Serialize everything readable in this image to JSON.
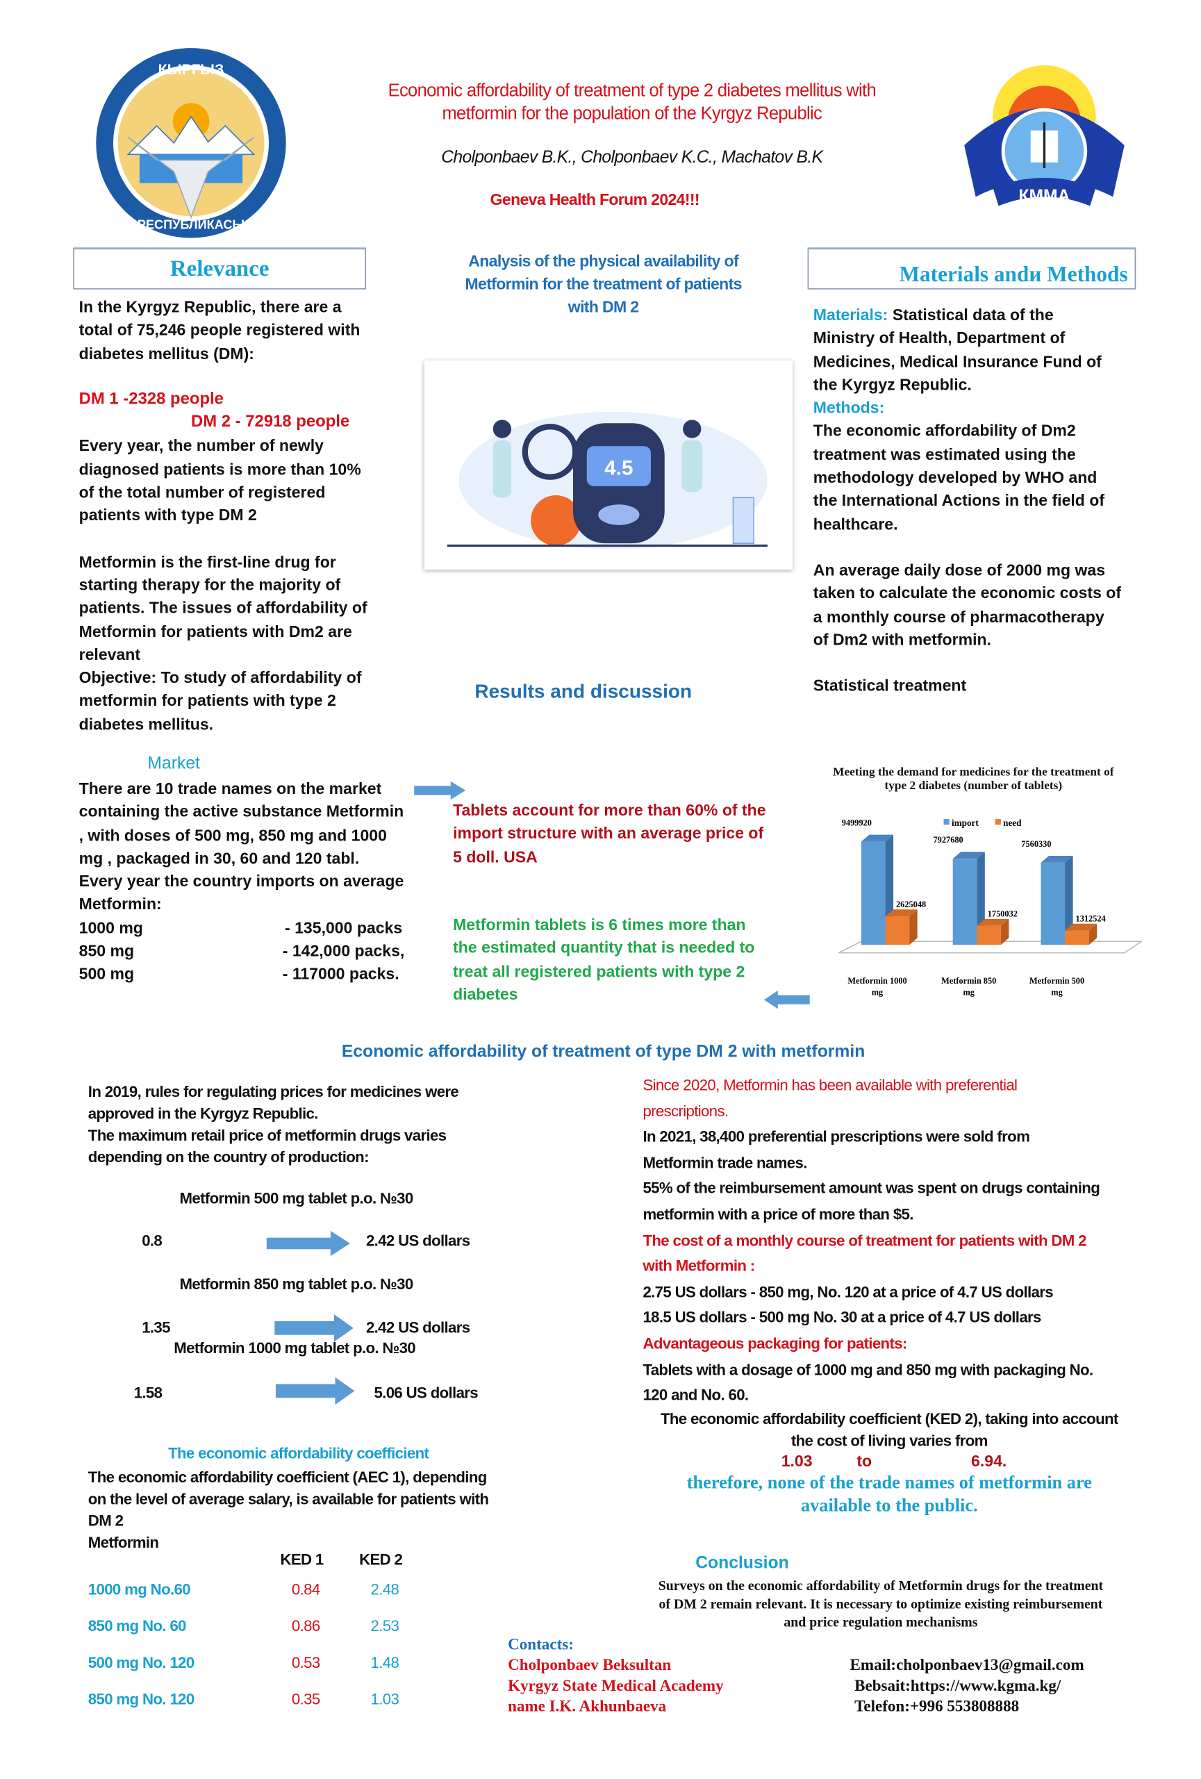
{
  "header": {
    "title_line1": "Economic affordability of treatment of type 2 diabetes mellitus with",
    "title_line2": "metformin for the population of the Kyrgyz Republic",
    "authors": "Cholponbaev B.K., Cholponbaev K.C., Machatov B.K",
    "event": "Geneva Health Forum 2024!!!",
    "left_logo_text_top": "КЫРГЫЗ",
    "left_logo_text_bottom": "РЕСПУБЛИКАСЫ",
    "right_logo_text": "КММА"
  },
  "relevance": {
    "heading": "Relevance",
    "lines": [
      "In the Kyrgyz Republic, there are a",
      "total of 75,246 people registered with",
      "diabetes mellitus  (DM):"
    ],
    "dm1": "DM  1 -2328 people",
    "dm2": "DM 2 -   72918 people",
    "lines2": [
      "  Every year, the number of newly",
      "diagnosed patients is more than 10%",
      "of the total number of registered",
      "patients with type DM 2"
    ],
    "lines3": [
      "Metformin is the first-line drug for",
      "starting therapy for the majority of",
      "patients. The issues of affordability of",
      "Metformin for patients with Dm2 are",
      "relevant",
      "Objective: To study of affordability of",
      "metformin for patients with type 2",
      "diabetes mellitus."
    ]
  },
  "analysis": {
    "heading_lines": [
      "Analysis of the physical availability of",
      "Metformin for the treatment of patients",
      "with DM 2"
    ],
    "glucometer_reading": "4.5"
  },
  "methods": {
    "heading": "Materials andи Methods",
    "materials_label": "Materials:",
    "materials_lines": [
      " Statistical data of the",
      "Ministry of Health, Department of",
      "Medicines,  Medical Insurance Fund of",
      "the Kyrgyz Republic."
    ],
    "methods_label": "Methods:",
    "methods_lines": [
      "The economic affordability of Dm2",
      "treatment was estimated using the",
      "methodology developed by WHO and",
      "the International Actions in the field of",
      "healthcare."
    ],
    "dose_lines": [
      "An average daily dose of 2000 mg was",
      "taken to calculate the economic costs of",
      "a monthly course of pharmacotherapy",
      "of Dm2 with metformin."
    ],
    "stat": "Statistical treatment"
  },
  "results": {
    "heading": "Results and discussion"
  },
  "market": {
    "heading": "Market",
    "lines": [
      "There are 10 trade names on the market",
      "containing the active substance Metformin",
      ", with doses of 500 mg, 850 mg and 1000",
      "mg , packaged in 30, 60 and 120 tabl.",
      "Every year the country imports on average",
      "Metformin:"
    ],
    "imports": [
      {
        "dose": "1000 mg",
        "packs": "- 135,000 packs"
      },
      {
        "dose": "850 mg",
        "packs": "-  142,000 packs,"
      },
      {
        "dose": "500 mg",
        "packs": "-   117000 packs."
      }
    ],
    "red_lines": [
      "Tablets account for more than 60% of the",
      "import structure with an average price of",
      "5 doll. USA"
    ],
    "green_lines": [
      "Metformin tablets is 6 times more than",
      "the estimated quantity that is needed to",
      "treat all registered patients with type 2",
      "diabetes"
    ]
  },
  "chart_data": {
    "type": "bar",
    "title": "Meeting the demand for medicines for the treatment of type 2 diabetes (number of tablets)",
    "categories": [
      "Metformin 1000 mg",
      "Metformin 850 mg",
      "Metformin 500 mg"
    ],
    "series": [
      {
        "name": "import",
        "values": [
          9499920,
          7927680,
          7560330
        ],
        "color": "#5b9bd5"
      },
      {
        "name": "need",
        "values": [
          2625048,
          1750032,
          1312524
        ],
        "color": "#ed7d31"
      }
    ],
    "data_labels": [
      "9499920",
      "7927680",
      "7560330",
      "2625048",
      "1750032",
      "1312524"
    ],
    "legend": "top",
    "grid": false,
    "style": "3d-column"
  },
  "affordability": {
    "heading": "Economic affordability of treatment of type DM 2 with metformin",
    "left_lines": [
      "In 2019, rules for regulating prices for medicines were",
      "approved in the Kyrgyz Republic.",
      "The maximum retail price of metformin drugs varies",
      "depending on the country of production:"
    ],
    "prices": [
      {
        "name": "Metformin 500 mg tablet p.o. №30",
        "from": "0.8",
        "to": "2.42 US dollars"
      },
      {
        "name": "Metformin 850 mg tablet p.o. №30",
        "from": "1.35",
        "to": "2.42 US dollars"
      },
      {
        "name": "Metformin 1000 mg tablet p.o. №30",
        "from": "1.58",
        "to": "5.06 US dollars"
      }
    ],
    "coef_heading": "The economic affordability coefficient",
    "coef_lines": [
      "The economic affordability coefficient (AEC 1), depending",
      "on the level of average salary, is available for patients with",
      "DM 2",
      "Metformin"
    ],
    "table_headers": [
      "KED 1",
      "KED 2"
    ],
    "table_rows": [
      {
        "name": "1000 mg No.60",
        "ked1": "0.84",
        "ked2": "2.48"
      },
      {
        "name": "850 mg No. 60",
        "ked1": "0.86",
        "ked2": "2.53"
      },
      {
        "name": "500 mg No. 120",
        "ked1": "0.53",
        "ked2": "1.48"
      },
      {
        "name": "850 mg No. 120",
        "ked1": "0.35",
        "ked2": "1.03"
      }
    ],
    "right": {
      "red1": [
        "Since 2020, Metformin has been available with preferential",
        "prescriptions."
      ],
      "black1": [
        " In 2021, 38,400 preferential prescriptions were sold from",
        "Metformin trade names.",
        "55% of the reimbursement amount was spent on drugs containing",
        "metformin with a price of more than $5."
      ],
      "red2": [
        "The cost of a monthly course of treatment for patients with DM 2",
        "with Metformin :"
      ],
      "black2": [
        "2.75 US dollars - 850 mg, No. 120 at a price of 4.7 US dollars",
        "18.5 US dollars - 500 mg No. 30 at a price of 4.7 US dollars"
      ],
      "red3": "Advantageous packaging for patients:",
      "black3": [
        "Tablets with a dosage of 1000 mg and 850 mg with packaging No.",
        "120 and No. 60."
      ],
      "ked2_line1": "The economic affordability coefficient (KED 2), taking into account",
      "ked2_line2": "the cost of living varies from",
      "range_from": "1.03",
      "range_to_word": "to",
      "range_to": "6.94.",
      "conclusion_lines": [
        "therefore, none of the trade names of metformin are",
        "available to the public."
      ]
    }
  },
  "conclusion": {
    "heading": "Conclusion",
    "lines": [
      "Surveys on the economic affordability of Metformin drugs for the treatment",
      "of DM 2 remain relevant. It is necessary to optimize existing reimbursement",
      "and price regulation mechanisms"
    ]
  },
  "contacts": {
    "heading": "Contacts:",
    "name": "Cholponbaev Beksultan",
    "org1": "Kyrgyz State Medical Academy",
    "org2": "name I.K. Akhunbaeva",
    "email": "Email:cholponbaev13@gmail.com",
    "website": "Bebsait:https://www.kgma.kg/",
    "phone": "Telefon:+996 553808888"
  }
}
